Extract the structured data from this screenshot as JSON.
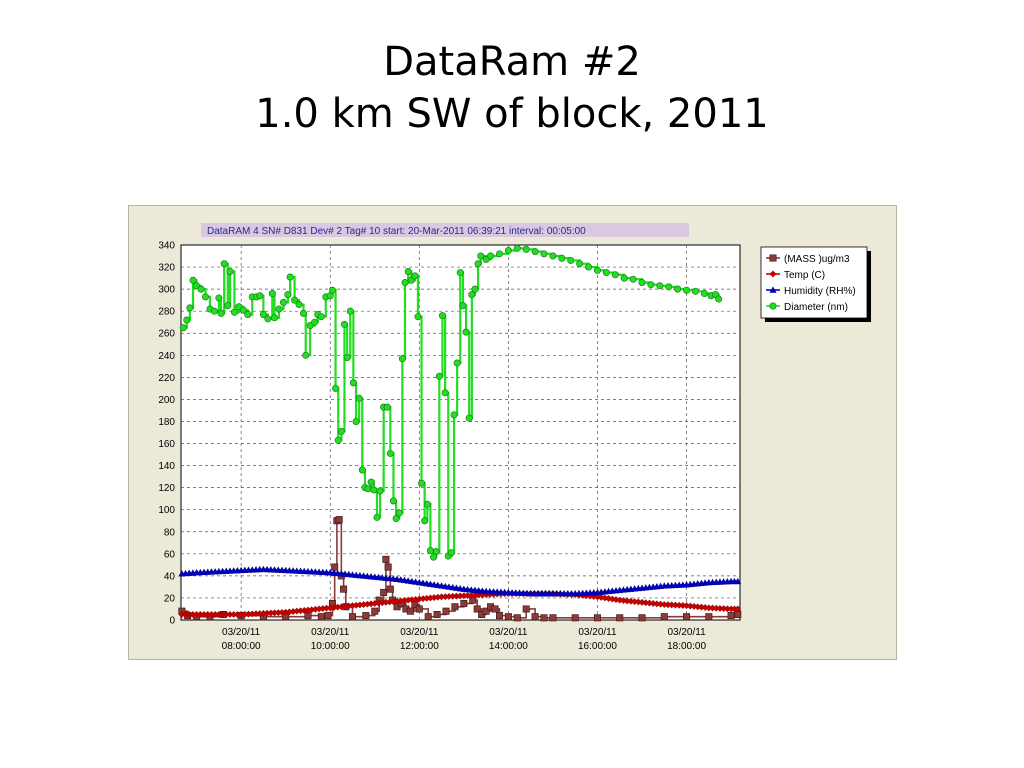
{
  "slide": {
    "title_line1": "DataRam #2",
    "title_line2": "1.0 km SW of block, 2011"
  },
  "colors": {
    "mass": "#8b3a3a",
    "temp": "#cc0000",
    "humidity": "#0000cc",
    "diameter": "#22dd22",
    "header_bg": "#d8c8e0"
  },
  "chart_data": {
    "type": "line",
    "header": "DataRAM 4   SN# D831       Dev# 2  Tag# 10  start: 20-Mar-2011 06:39:21  interval: 00:05:00",
    "x_labels": [
      [
        "03/20/11",
        "08:00:00"
      ],
      [
        "03/20/11",
        "10:00:00"
      ],
      [
        "03/20/11",
        "12:00:00"
      ],
      [
        "03/20/11",
        "14:00:00"
      ],
      [
        "03/20/11",
        "16:00:00"
      ],
      [
        "03/20/11",
        "18:00:00"
      ]
    ],
    "x_ticks_hours": [
      8,
      10,
      12,
      14,
      16,
      18
    ],
    "xlim": [
      6.65,
      19.2
    ],
    "ylim": [
      0,
      340
    ],
    "y_ticks": [
      0,
      20,
      40,
      60,
      80,
      100,
      120,
      140,
      160,
      180,
      200,
      220,
      240,
      260,
      280,
      300,
      320,
      340
    ],
    "grid": true,
    "legend_position": "right-top",
    "series": [
      {
        "name": "(MASS )ug/m3",
        "marker": "square",
        "points": [
          [
            6.67,
            8
          ],
          [
            6.8,
            4
          ],
          [
            7.0,
            3
          ],
          [
            7.3,
            3
          ],
          [
            7.6,
            5
          ],
          [
            8.0,
            4
          ],
          [
            8.5,
            3
          ],
          [
            9.0,
            3
          ],
          [
            9.5,
            4
          ],
          [
            9.8,
            3
          ],
          [
            9.95,
            4
          ],
          [
            10.05,
            15
          ],
          [
            10.1,
            48
          ],
          [
            10.15,
            90
          ],
          [
            10.2,
            91
          ],
          [
            10.25,
            40
          ],
          [
            10.3,
            28
          ],
          [
            10.35,
            12
          ],
          [
            10.5,
            3
          ],
          [
            10.8,
            4
          ],
          [
            11.0,
            8
          ],
          [
            11.1,
            18
          ],
          [
            11.2,
            25
          ],
          [
            11.25,
            55
          ],
          [
            11.3,
            48
          ],
          [
            11.35,
            28
          ],
          [
            11.4,
            18
          ],
          [
            11.5,
            12
          ],
          [
            11.6,
            15
          ],
          [
            11.7,
            10
          ],
          [
            11.8,
            8
          ],
          [
            11.9,
            14
          ],
          [
            12.0,
            10
          ],
          [
            12.2,
            3
          ],
          [
            12.4,
            5
          ],
          [
            12.6,
            8
          ],
          [
            12.8,
            12
          ],
          [
            13.0,
            15
          ],
          [
            13.2,
            18
          ],
          [
            13.3,
            10
          ],
          [
            13.4,
            5
          ],
          [
            13.5,
            8
          ],
          [
            13.6,
            12
          ],
          [
            13.7,
            10
          ],
          [
            13.8,
            4
          ],
          [
            14.0,
            3
          ],
          [
            14.2,
            2
          ],
          [
            14.4,
            10
          ],
          [
            14.6,
            3
          ],
          [
            14.8,
            2
          ],
          [
            15.0,
            2
          ],
          [
            15.5,
            2
          ],
          [
            16.0,
            2
          ],
          [
            16.5,
            2
          ],
          [
            17.0,
            2
          ],
          [
            17.5,
            3
          ],
          [
            18.0,
            3
          ],
          [
            18.5,
            3
          ],
          [
            19.0,
            4
          ],
          [
            19.15,
            5
          ]
        ]
      },
      {
        "name": "Temp (C)",
        "marker": "diamond",
        "points": [
          [
            6.67,
            5
          ],
          [
            7.0,
            5
          ],
          [
            7.5,
            5
          ],
          [
            8.0,
            5
          ],
          [
            8.5,
            6
          ],
          [
            9.0,
            7
          ],
          [
            9.5,
            9
          ],
          [
            10.0,
            11
          ],
          [
            10.5,
            13
          ],
          [
            11.0,
            15
          ],
          [
            11.5,
            17
          ],
          [
            12.0,
            19
          ],
          [
            12.5,
            21
          ],
          [
            13.0,
            22
          ],
          [
            13.5,
            23
          ],
          [
            14.0,
            24
          ],
          [
            14.5,
            24
          ],
          [
            15.0,
            24
          ],
          [
            15.5,
            23
          ],
          [
            16.0,
            21
          ],
          [
            16.5,
            18
          ],
          [
            17.0,
            16
          ],
          [
            17.5,
            14
          ],
          [
            18.0,
            13
          ],
          [
            18.5,
            11
          ],
          [
            19.0,
            10
          ],
          [
            19.15,
            10
          ]
        ]
      },
      {
        "name": "Humidity (RH%)",
        "marker": "triangle",
        "points": [
          [
            6.67,
            42
          ],
          [
            7.0,
            43
          ],
          [
            7.5,
            44
          ],
          [
            8.0,
            45
          ],
          [
            8.5,
            46
          ],
          [
            9.0,
            45
          ],
          [
            9.5,
            44
          ],
          [
            10.0,
            43
          ],
          [
            10.5,
            41
          ],
          [
            11.0,
            39
          ],
          [
            11.5,
            37
          ],
          [
            12.0,
            34
          ],
          [
            12.5,
            31
          ],
          [
            13.0,
            28
          ],
          [
            13.5,
            26
          ],
          [
            14.0,
            25
          ],
          [
            14.5,
            24
          ],
          [
            15.0,
            24
          ],
          [
            15.5,
            24
          ],
          [
            16.0,
            25
          ],
          [
            16.5,
            27
          ],
          [
            17.0,
            29
          ],
          [
            17.5,
            31
          ],
          [
            18.0,
            32
          ],
          [
            18.5,
            34
          ],
          [
            19.0,
            35
          ],
          [
            19.15,
            35
          ]
        ]
      },
      {
        "name": "Diameter (nm)",
        "marker": "circle",
        "points": [
          [
            6.7,
            265
          ],
          [
            6.78,
            272
          ],
          [
            6.85,
            283
          ],
          [
            6.92,
            308
          ],
          [
            7.0,
            303
          ],
          [
            7.1,
            300
          ],
          [
            7.2,
            293
          ],
          [
            7.3,
            282
          ],
          [
            7.4,
            280
          ],
          [
            7.5,
            292
          ],
          [
            7.55,
            278
          ],
          [
            7.62,
            323
          ],
          [
            7.7,
            285
          ],
          [
            7.75,
            316
          ],
          [
            7.85,
            279
          ],
          [
            7.95,
            284
          ],
          [
            8.05,
            281
          ],
          [
            8.15,
            277
          ],
          [
            8.25,
            293
          ],
          [
            8.35,
            293
          ],
          [
            8.42,
            294
          ],
          [
            8.5,
            277
          ],
          [
            8.6,
            273
          ],
          [
            8.7,
            296
          ],
          [
            8.75,
            274
          ],
          [
            8.85,
            282
          ],
          [
            8.95,
            288
          ],
          [
            9.05,
            295
          ],
          [
            9.1,
            311
          ],
          [
            9.2,
            290
          ],
          [
            9.3,
            286
          ],
          [
            9.4,
            278
          ],
          [
            9.45,
            240
          ],
          [
            9.55,
            267
          ],
          [
            9.65,
            270
          ],
          [
            9.72,
            277
          ],
          [
            9.8,
            275
          ],
          [
            9.9,
            293
          ],
          [
            10.0,
            294
          ],
          [
            10.05,
            299
          ],
          [
            10.12,
            210
          ],
          [
            10.18,
            163
          ],
          [
            10.25,
            171
          ],
          [
            10.32,
            268
          ],
          [
            10.38,
            238
          ],
          [
            10.45,
            280
          ],
          [
            10.52,
            215
          ],
          [
            10.58,
            180
          ],
          [
            10.65,
            201
          ],
          [
            10.72,
            136
          ],
          [
            10.78,
            120
          ],
          [
            10.85,
            119
          ],
          [
            10.92,
            125
          ],
          [
            10.98,
            118
          ],
          [
            11.05,
            93
          ],
          [
            11.12,
            117
          ],
          [
            11.2,
            193
          ],
          [
            11.28,
            193
          ],
          [
            11.35,
            151
          ],
          [
            11.42,
            108
          ],
          [
            11.48,
            92
          ],
          [
            11.55,
            97
          ],
          [
            11.62,
            237
          ],
          [
            11.68,
            306
          ],
          [
            11.75,
            316
          ],
          [
            11.82,
            308
          ],
          [
            11.9,
            312
          ],
          [
            11.97,
            275
          ],
          [
            12.05,
            124
          ],
          [
            12.12,
            90
          ],
          [
            12.18,
            105
          ],
          [
            12.25,
            63
          ],
          [
            12.32,
            57
          ],
          [
            12.38,
            62
          ],
          [
            12.45,
            221
          ],
          [
            12.52,
            276
          ],
          [
            12.58,
            206
          ],
          [
            12.65,
            58
          ],
          [
            12.72,
            61
          ],
          [
            12.78,
            186
          ],
          [
            12.85,
            233
          ],
          [
            12.92,
            315
          ],
          [
            12.98,
            285
          ],
          [
            13.05,
            261
          ],
          [
            13.12,
            183
          ],
          [
            13.18,
            295
          ],
          [
            13.25,
            300
          ],
          [
            13.32,
            323
          ],
          [
            13.38,
            330
          ],
          [
            13.5,
            327
          ],
          [
            13.6,
            330
          ],
          [
            13.8,
            332
          ],
          [
            14.0,
            335
          ],
          [
            14.2,
            337
          ],
          [
            14.4,
            336
          ],
          [
            14.6,
            334
          ],
          [
            14.8,
            332
          ],
          [
            15.0,
            330
          ],
          [
            15.2,
            328
          ],
          [
            15.4,
            326
          ],
          [
            15.6,
            323
          ],
          [
            15.8,
            320
          ],
          [
            16.0,
            317
          ],
          [
            16.2,
            315
          ],
          [
            16.4,
            313
          ],
          [
            16.6,
            310
          ],
          [
            16.8,
            309
          ],
          [
            17.0,
            306
          ],
          [
            17.2,
            304
          ],
          [
            17.4,
            303
          ],
          [
            17.6,
            302
          ],
          [
            17.8,
            300
          ],
          [
            18.0,
            299
          ],
          [
            18.2,
            298
          ],
          [
            18.4,
            296
          ],
          [
            18.55,
            294
          ],
          [
            18.65,
            295
          ],
          [
            18.72,
            291
          ]
        ]
      }
    ]
  }
}
